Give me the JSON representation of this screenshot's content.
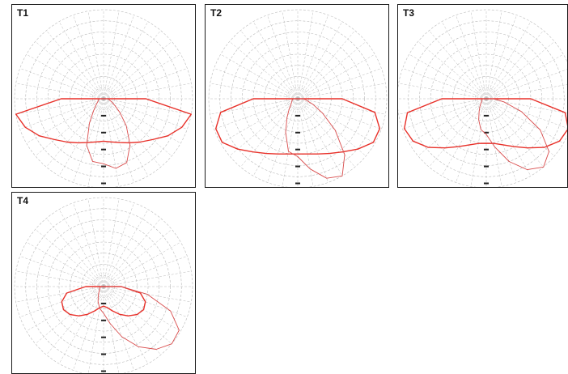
{
  "chart_data": [
    {
      "type": "polar",
      "title": "T1",
      "grid": true,
      "colors": {
        "c0_c180": "#e8312a",
        "c90_c270": "#d94c4c",
        "grid": "#b9b9b9"
      },
      "angles_deg": [
        0,
        10,
        20,
        30,
        40,
        50,
        60,
        70,
        80,
        90
      ],
      "series": [
        {
          "values_left": [
            60,
            62,
            66,
            72,
            80,
            90,
            105,
            118,
            126,
            60
          ],
          "values_right": [
            60,
            62,
            66,
            72,
            80,
            90,
            105,
            118,
            126,
            60
          ]
        },
        {
          "values_left": [
            92,
            90,
            70,
            40,
            22,
            14,
            10,
            8,
            7,
            6
          ],
          "values_right": [
            92,
            100,
            96,
            75,
            50,
            30,
            18,
            12,
            8,
            6
          ]
        }
      ]
    },
    {
      "type": "polar",
      "title": "T2",
      "grid": true,
      "colors": {
        "c0_c180": "#e8312a",
        "c90_c270": "#d94c4c",
        "grid": "#b9b9b9"
      },
      "angles_deg": [
        0,
        10,
        20,
        30,
        40,
        50,
        60,
        70,
        80,
        90
      ],
      "series": [
        {
          "values_left": [
            62,
            63,
            66,
            71,
            78,
            88,
            98,
            98,
            88,
            50
          ],
          "values_right": [
            62,
            63,
            66,
            71,
            78,
            88,
            98,
            98,
            88,
            50
          ]
        },
        {
          "values_left": [
            65,
            60,
            40,
            24,
            15,
            10,
            8,
            7,
            6,
            5
          ],
          "values_right": [
            65,
            80,
            95,
            100,
            82,
            55,
            32,
            18,
            10,
            6
          ]
        }
      ]
    },
    {
      "type": "polar",
      "title": "T3",
      "grid": true,
      "colors": {
        "c0_c180": "#e8312a",
        "c90_c270": "#d94c4c",
        "grid": "#b9b9b9"
      },
      "angles_deg": [
        0,
        10,
        20,
        30,
        40,
        50,
        60,
        70,
        80,
        90
      ],
      "series": [
        {
          "values_left": [
            50,
            51,
            55,
            62,
            72,
            85,
            95,
            98,
            90,
            50
          ],
          "values_right": [
            50,
            51,
            55,
            62,
            72,
            85,
            95,
            98,
            90,
            50
          ]
        },
        {
          "values_left": [
            40,
            35,
            25,
            16,
            11,
            8,
            6,
            5,
            5,
            4
          ],
          "values_right": [
            40,
            55,
            75,
            92,
            100,
            92,
            70,
            42,
            20,
            8
          ]
        }
      ]
    },
    {
      "type": "polar",
      "title": "T4",
      "grid": true,
      "colors": {
        "c0_c180": "#e8312a",
        "c90_c270": "#d94c4c",
        "grid": "#b9b9b9"
      },
      "angles_deg": [
        0,
        10,
        20,
        30,
        40,
        50,
        60,
        70,
        80,
        90
      ],
      "series": [
        {
          "values_left": [
            22,
            24,
            29,
            36,
            43,
            49,
            52,
            50,
            42,
            20
          ],
          "values_right": [
            22,
            24,
            29,
            36,
            43,
            49,
            52,
            50,
            42,
            20
          ]
        },
        {
          "values_left": [
            30,
            25,
            18,
            12,
            8,
            6,
            5,
            4,
            4,
            3
          ],
          "values_right": [
            30,
            42,
            60,
            78,
            92,
            100,
            98,
            80,
            50,
            20
          ]
        }
      ]
    }
  ]
}
